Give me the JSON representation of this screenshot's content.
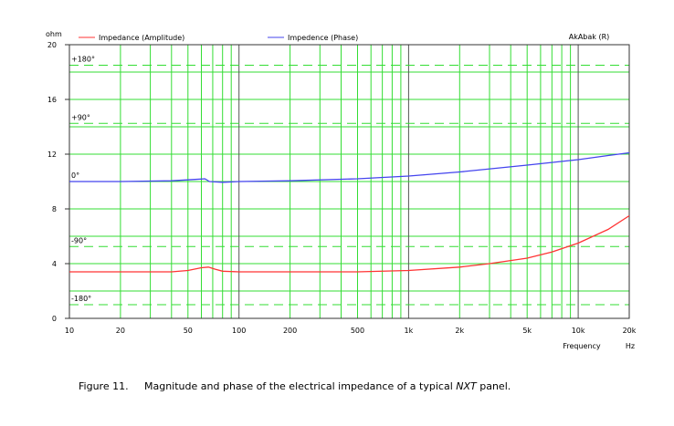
{
  "chart_data": {
    "type": "line",
    "xscale": "log",
    "xlim": [
      10,
      20000
    ],
    "ylim": [
      0,
      20
    ],
    "yunit": "ohm",
    "xlabel": "Frequency",
    "xunit": "Hz",
    "corner_label": "AkAbak (R)",
    "grid": true,
    "y_ticks": [
      "0",
      "4",
      "8",
      "12",
      "16",
      "20"
    ],
    "x_ticks": [
      {
        "v": 10,
        "t": "10"
      },
      {
        "v": 20,
        "t": "20"
      },
      {
        "v": 50,
        "t": "50"
      },
      {
        "v": 100,
        "t": "100"
      },
      {
        "v": 200,
        "t": "200"
      },
      {
        "v": 500,
        "t": "500"
      },
      {
        "v": 1000,
        "t": "1k"
      },
      {
        "v": 2000,
        "t": "2k"
      },
      {
        "v": 5000,
        "t": "5k"
      },
      {
        "v": 10000,
        "t": "10k"
      },
      {
        "v": 20000,
        "t": "20k"
      }
    ],
    "phase_ticks": [
      {
        "y": 18.5,
        "t": "+180°"
      },
      {
        "y": 14.25,
        "t": "+90°"
      },
      {
        "y": 10,
        "t": "0°"
      },
      {
        "y": 5.25,
        "t": "-90°"
      },
      {
        "y": 1.0,
        "t": "-180°"
      }
    ],
    "series": [
      {
        "name": "Impedance (Amplitude)",
        "color": "#ff3333",
        "points": [
          [
            10,
            3.4
          ],
          [
            20,
            3.4
          ],
          [
            40,
            3.4
          ],
          [
            50,
            3.5
          ],
          [
            60,
            3.7
          ],
          [
            66,
            3.75
          ],
          [
            72,
            3.6
          ],
          [
            80,
            3.45
          ],
          [
            100,
            3.4
          ],
          [
            200,
            3.4
          ],
          [
            500,
            3.4
          ],
          [
            1000,
            3.5
          ],
          [
            2000,
            3.75
          ],
          [
            3000,
            4.0
          ],
          [
            5000,
            4.4
          ],
          [
            7000,
            4.85
          ],
          [
            10000,
            5.5
          ],
          [
            15000,
            6.5
          ],
          [
            20000,
            7.5
          ]
        ]
      },
      {
        "name": "Impedence (Phase)",
        "color": "#4444ee",
        "points": [
          [
            10,
            10.0
          ],
          [
            20,
            10.0
          ],
          [
            40,
            10.05
          ],
          [
            55,
            10.15
          ],
          [
            63,
            10.2
          ],
          [
            67,
            10.0
          ],
          [
            80,
            9.95
          ],
          [
            100,
            10.0
          ],
          [
            200,
            10.05
          ],
          [
            500,
            10.2
          ],
          [
            1000,
            10.4
          ],
          [
            2000,
            10.7
          ],
          [
            5000,
            11.2
          ],
          [
            10000,
            11.6
          ],
          [
            15000,
            11.9
          ],
          [
            20000,
            12.1
          ]
        ]
      }
    ]
  },
  "caption": {
    "number": "Figure 11.",
    "text_before": "Magnitude and phase of the electrical impedance of a typical ",
    "emphasis": "NXT",
    "text_after": " panel."
  }
}
